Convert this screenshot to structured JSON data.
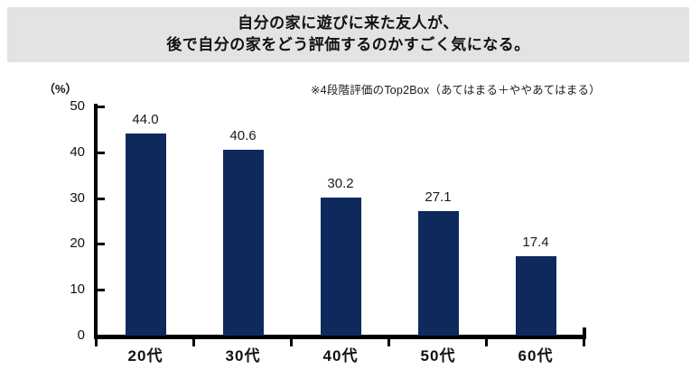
{
  "title": {
    "line1": "自分の家に遊びに来た友人が、",
    "line2": "後で自分の家をどう評価するのかすごく気になる。"
  },
  "note": "※4段階評価のTop2Box（あてはまる＋ややあてはまる）",
  "y_axis_unit": "（%）",
  "colors": {
    "bar": "#0e2a5c",
    "title_bg": "#e3e3e3",
    "axis": "#000000"
  },
  "chart_data": {
    "type": "bar",
    "title": "自分の家に遊びに来た友人が、後で自分の家をどう評価するのかすごく気になる。",
    "annotation": "※4段階評価のTop2Box（あてはまる＋ややあてはまる）",
    "categories": [
      "20代",
      "30代",
      "40代",
      "50代",
      "60代"
    ],
    "values": [
      44.0,
      40.6,
      30.2,
      27.1,
      17.4
    ],
    "value_labels": [
      "44.0",
      "40.6",
      "30.2",
      "27.1",
      "17.4"
    ],
    "xlabel": "",
    "ylabel": "（%）",
    "ylim": [
      0,
      50
    ],
    "yticks": [
      0,
      10,
      20,
      30,
      40,
      50
    ],
    "grid": false,
    "legend": null,
    "bar_color": "#0e2a5c"
  }
}
